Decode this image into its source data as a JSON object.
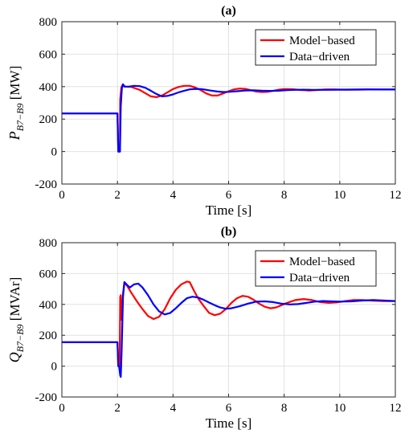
{
  "chart_data": [
    {
      "type": "line",
      "title": "(a)",
      "xlabel": "Time [s]",
      "ylabel": {
        "main": "P",
        "sub": "B7−B9",
        "unit": "[MW]"
      },
      "xlim": [
        0,
        12
      ],
      "ylim": [
        -200,
        800
      ],
      "xticks": [
        "0",
        "2",
        "4",
        "6",
        "8",
        "10",
        "12"
      ],
      "yticks": [
        "-200",
        "0",
        "200",
        "400",
        "600",
        "800"
      ],
      "grid": true,
      "legend_position": "top-right",
      "series": [
        {
          "name": "Model−based",
          "color": "#ff0000",
          "x": [
            0,
            2.0,
            2.03,
            2.05,
            2.07,
            2.09,
            2.1,
            2.14,
            2.18,
            2.22,
            2.3,
            2.5,
            2.8,
            3.0,
            3.2,
            3.4,
            3.6,
            3.8,
            4.0,
            4.2,
            4.4,
            4.6,
            4.8,
            5.0,
            5.2,
            5.4,
            5.6,
            5.8,
            6.0,
            6.2,
            6.4,
            6.6,
            6.8,
            7.0,
            7.2,
            7.4,
            7.6,
            7.8,
            8.0,
            8.3,
            8.6,
            8.9,
            9.2,
            9.5,
            9.8,
            10.2,
            10.6,
            11.0,
            11.5,
            12.0
          ],
          "y": [
            235,
            235,
            0,
            0,
            0,
            0,
            320,
            395,
            410,
            405,
            400,
            398,
            380,
            360,
            340,
            335,
            345,
            365,
            385,
            398,
            405,
            405,
            395,
            378,
            358,
            345,
            345,
            358,
            372,
            383,
            388,
            386,
            378,
            370,
            367,
            368,
            374,
            381,
            385,
            384,
            379,
            376,
            379,
            383,
            383,
            381,
            381,
            382,
            382,
            382
          ]
        },
        {
          "name": "Data−driven",
          "color": "#0000ff",
          "x": [
            0,
            2.0,
            2.03,
            2.06,
            2.09,
            2.12,
            2.16,
            2.2,
            2.25,
            2.4,
            2.6,
            2.8,
            3.0,
            3.2,
            3.4,
            3.6,
            3.8,
            4.0,
            4.2,
            4.4,
            4.6,
            4.8,
            5.0,
            5.2,
            5.4,
            5.6,
            5.8,
            6.0,
            6.3,
            6.6,
            6.9,
            7.2,
            7.5,
            7.8,
            8.1,
            8.4,
            8.7,
            9.0,
            9.5,
            10.0,
            10.5,
            11.0,
            11.5,
            12.0
          ],
          "y": [
            235,
            235,
            0,
            0,
            0,
            280,
            390,
            415,
            400,
            400,
            405,
            403,
            393,
            375,
            355,
            340,
            343,
            352,
            365,
            375,
            383,
            386,
            385,
            380,
            375,
            370,
            367,
            368,
            372,
            376,
            377,
            375,
            374,
            375,
            378,
            380,
            381,
            380,
            380,
            381,
            382,
            383,
            382,
            382
          ]
        }
      ]
    },
    {
      "type": "line",
      "title": "(b)",
      "xlabel": "Time [s]",
      "ylabel": {
        "main": "Q",
        "sub": "B7−B9",
        "unit": "[MVAr]"
      },
      "xlim": [
        0,
        12
      ],
      "ylim": [
        -200,
        800
      ],
      "xticks": [
        "0",
        "2",
        "4",
        "6",
        "8",
        "10",
        "12"
      ],
      "yticks": [
        "-200",
        "0",
        "200",
        "400",
        "600",
        "800"
      ],
      "grid": true,
      "legend_position": "top-right",
      "series": [
        {
          "name": "Model−based",
          "color": "#ff0000",
          "x": [
            0,
            2.0,
            2.03,
            2.06,
            2.08,
            2.1,
            2.12,
            2.15,
            2.2,
            2.25,
            2.35,
            2.5,
            2.7,
            2.9,
            3.1,
            3.3,
            3.5,
            3.7,
            3.9,
            4.1,
            4.3,
            4.5,
            4.6,
            4.75,
            4.9,
            5.1,
            5.3,
            5.5,
            5.7,
            5.9,
            6.1,
            6.3,
            6.5,
            6.7,
            6.9,
            7.1,
            7.3,
            7.5,
            7.7,
            7.9,
            8.1,
            8.4,
            8.7,
            9.0,
            9.3,
            9.6,
            9.9,
            10.2,
            10.5,
            10.8,
            11.2,
            11.6,
            12.0
          ],
          "y": [
            155,
            155,
            0,
            0,
            0,
            450,
            460,
            300,
            470,
            540,
            520,
            475,
            420,
            370,
            325,
            305,
            320,
            370,
            440,
            495,
            530,
            548,
            545,
            490,
            440,
            390,
            345,
            330,
            340,
            370,
            410,
            440,
            455,
            450,
            430,
            405,
            385,
            375,
            380,
            395,
            410,
            428,
            435,
            428,
            415,
            410,
            413,
            422,
            428,
            428,
            424,
            422,
            422
          ]
        },
        {
          "name": "Data−driven",
          "color": "#0000ff",
          "x": [
            0,
            2.0,
            2.03,
            2.06,
            2.1,
            2.12,
            2.15,
            2.2,
            2.25,
            2.35,
            2.45,
            2.6,
            2.75,
            2.9,
            3.1,
            3.3,
            3.5,
            3.7,
            3.9,
            4.1,
            4.3,
            4.5,
            4.7,
            4.9,
            5.1,
            5.3,
            5.5,
            5.7,
            5.9,
            6.1,
            6.4,
            6.7,
            7.0,
            7.3,
            7.6,
            7.9,
            8.2,
            8.5,
            8.8,
            9.1,
            9.4,
            9.7,
            10.0,
            10.4,
            10.8,
            11.2,
            11.6,
            12.0
          ],
          "y": [
            155,
            155,
            0,
            0,
            -60,
            -70,
            100,
            450,
            545,
            525,
            510,
            530,
            535,
            510,
            460,
            400,
            355,
            335,
            345,
            375,
            410,
            440,
            450,
            445,
            430,
            412,
            395,
            380,
            372,
            375,
            388,
            405,
            418,
            420,
            415,
            405,
            400,
            402,
            410,
            418,
            422,
            420,
            418,
            420,
            425,
            428,
            425,
            422
          ]
        }
      ]
    }
  ]
}
